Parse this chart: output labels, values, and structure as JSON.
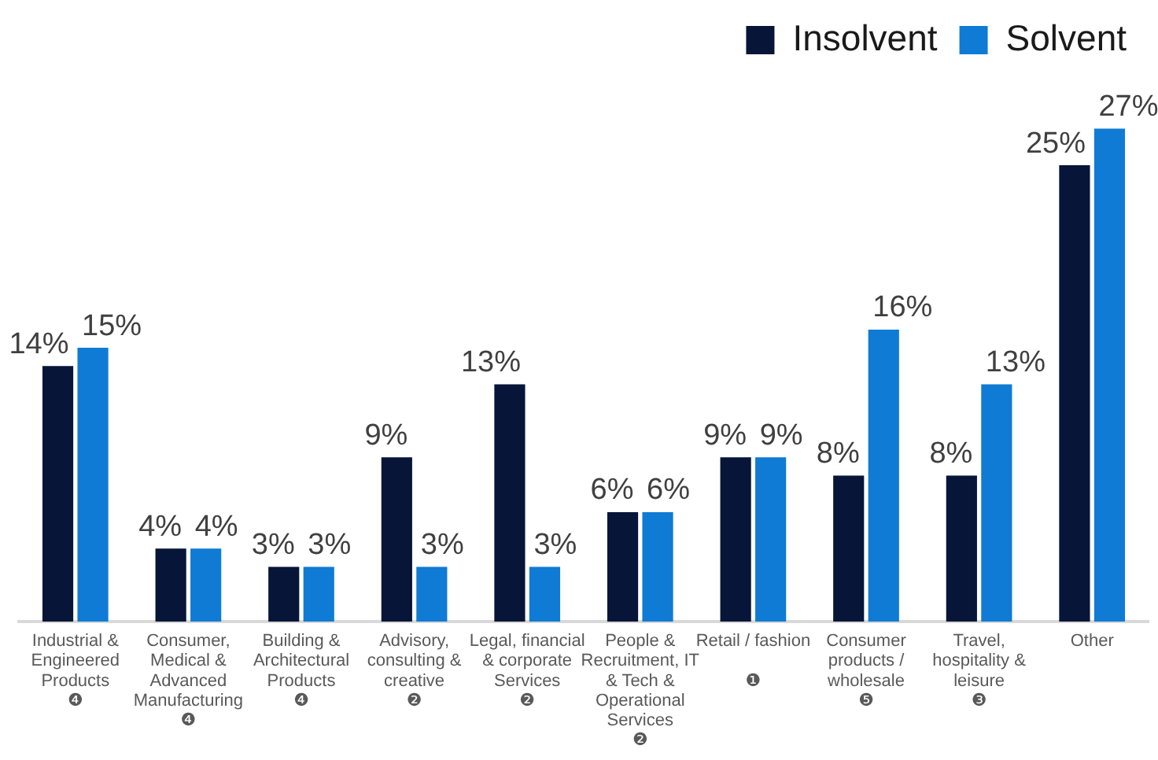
{
  "chart_data": {
    "type": "bar",
    "categories": [
      "Industrial &\nEngineered\nProducts\n❹",
      "Consumer,\nMedical &\nAdvanced\nManufacturing\n❹",
      "Building &\nArchitectural\nProducts\n❹",
      "Advisory,\nconsulting &\ncreative\n❷",
      "Legal, financial\n& corporate\nServices\n❷",
      "People &\nRecruitment, IT\n& Tech &\nOperational\nServices\n❷",
      "Retail / fashion\n\n❶",
      "Consumer\nproducts /\nwholesale\n❺",
      "Travel,\nhospitality &\nleisure\n❸",
      "Other"
    ],
    "series": [
      {
        "name": "Insolvent",
        "color": "#061538",
        "values": [
          14,
          4,
          3,
          9,
          13,
          6,
          9,
          8,
          8,
          25
        ],
        "value_labels": [
          "14%",
          "4%",
          "3%",
          "9%",
          "13%",
          "6%",
          "9%",
          "8%",
          "8%",
          "25%"
        ]
      },
      {
        "name": "Solvent",
        "color": "#0f7bd4",
        "values": [
          15,
          4,
          3,
          3,
          3,
          6,
          9,
          16,
          13,
          27
        ],
        "value_labels": [
          "15%",
          "4%",
          "3%",
          "3%",
          "3%",
          "6%",
          "9%",
          "16%",
          "13%",
          "27%"
        ]
      }
    ],
    "legend": "top right"
  }
}
